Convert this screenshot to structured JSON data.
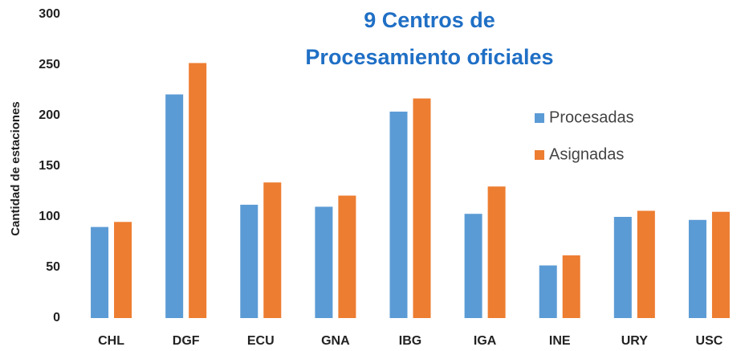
{
  "chart_data": {
    "type": "bar",
    "title": "9 Centros de Procesamiento oficiales",
    "ylabel": "Cantidad de estaciones",
    "categories": [
      "CHL",
      "DGF",
      "ECU",
      "GNA",
      "IBG",
      "IGA",
      "INE",
      "URY",
      "USC"
    ],
    "series": [
      {
        "name": "Procesadas",
        "color": "#5b9bd5",
        "values": [
          90,
          221,
          112,
          110,
          204,
          103,
          52,
          100,
          97
        ]
      },
      {
        "name": "Asignadas",
        "color": "#ed7d31",
        "values": [
          95,
          252,
          134,
          121,
          217,
          130,
          62,
          106,
          105
        ]
      }
    ],
    "ylim": [
      0,
      300
    ],
    "yticks": [
      0,
      50,
      100,
      150,
      200,
      250,
      300
    ],
    "grid": false,
    "legend": "upper right"
  }
}
